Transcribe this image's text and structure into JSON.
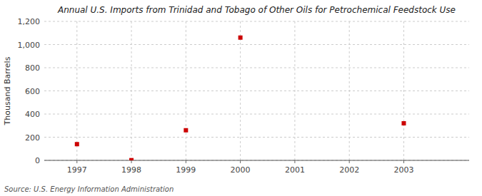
{
  "chart_data": {
    "type": "scatter",
    "title": "Annual U.S. Imports from Trinidad and Tobago of Other Oils for Petrochemical Feedstock Use",
    "ylabel": "Thousand Barrels",
    "source": "Source: U.S. Energy Information Administration",
    "x": [
      1997,
      1998,
      1999,
      2000,
      2003
    ],
    "values": [
      140,
      2,
      260,
      1060,
      320
    ],
    "color": "#cc0000",
    "marker": "square",
    "xlim": [
      1996.4,
      2004.2
    ],
    "ylim": [
      0,
      1200
    ],
    "xticks": [
      1997,
      1998,
      1999,
      2000,
      2001,
      2002,
      2003
    ],
    "yticks": [
      0,
      200,
      400,
      600,
      800,
      {
        "value": 1000,
        "label": "1,000"
      },
      {
        "value": 1200,
        "label": "1,200"
      }
    ],
    "grid": true
  }
}
